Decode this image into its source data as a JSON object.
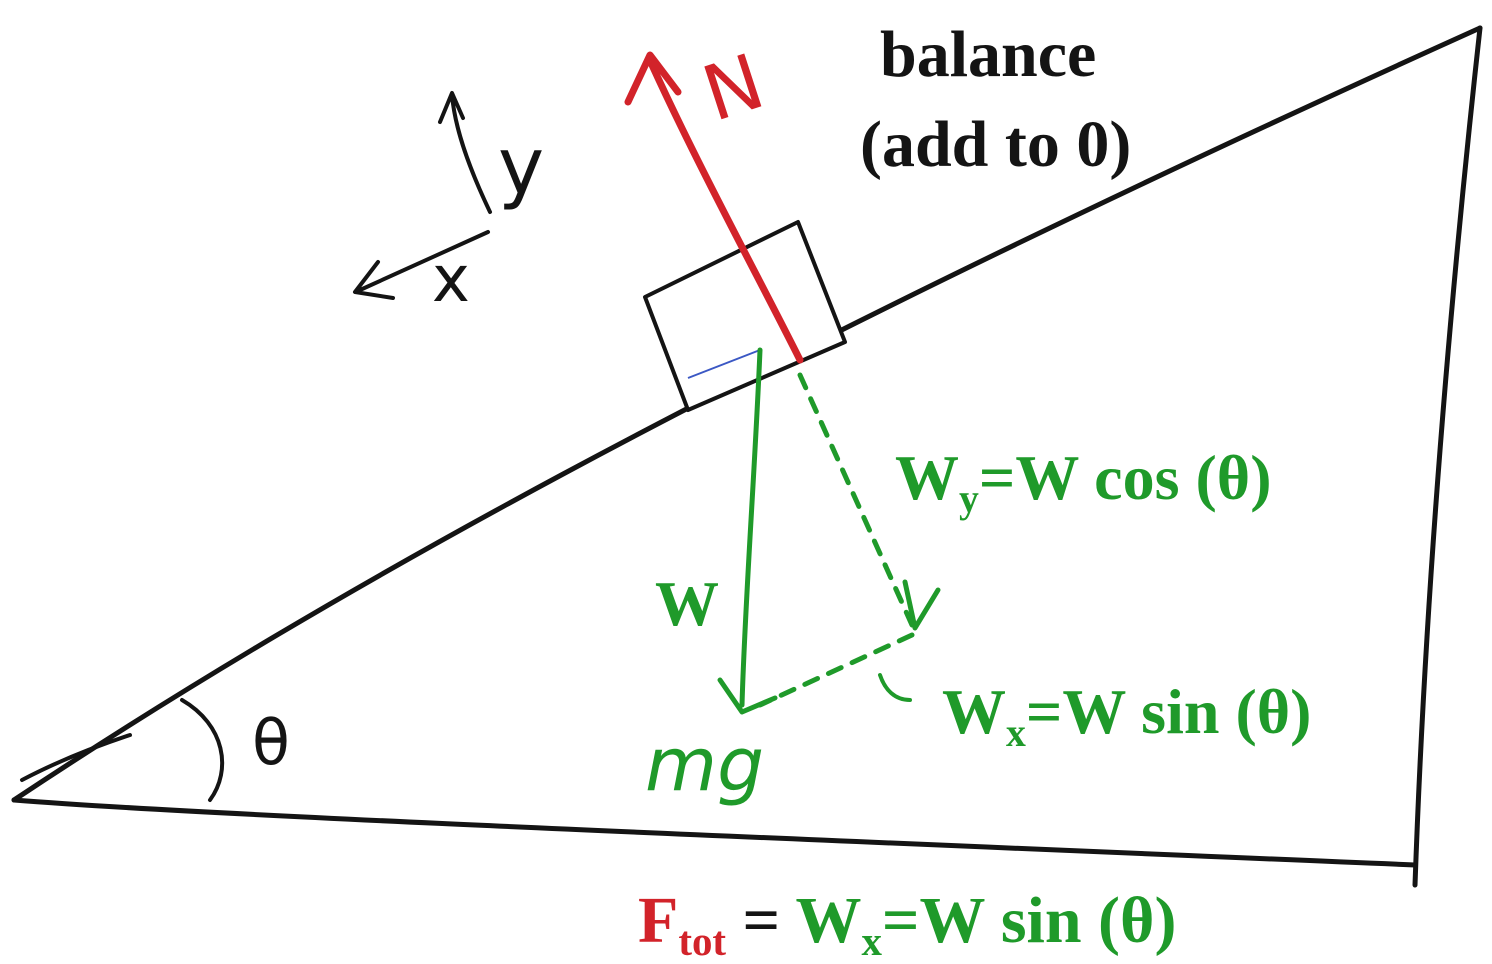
{
  "colors": {
    "ink": "#141414",
    "normal": "#d2232a",
    "weight": "#1f9a2a"
  },
  "text": {
    "balance_line1": "balance",
    "balance_line2": "(add to 0)",
    "wy_label": "W",
    "wy_sub": "y",
    "wy_eq": "=W cos (θ)",
    "w_label": "W",
    "wx_label": "W",
    "wx_sub": "x",
    "wx_eq": "=W sin (θ)",
    "ftot_F": "F",
    "ftot_sub": "tot",
    "ftot_eq": " = ",
    "ftot_wx": "W",
    "ftot_wx_sub": "x",
    "ftot_wx_eq": "=W sin (θ)"
  },
  "handwritten": {
    "normal": "N",
    "y_axis": "y",
    "x_axis": "x",
    "theta": "θ",
    "mg": "mg"
  }
}
